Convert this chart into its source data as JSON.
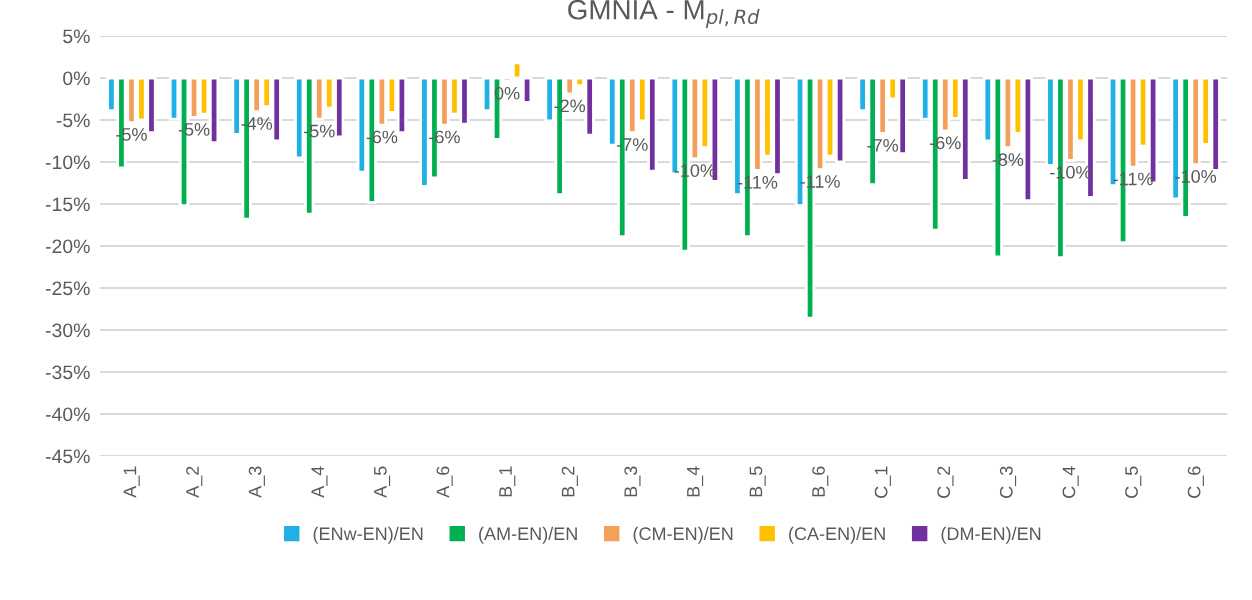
{
  "chart_data": {
    "type": "bar",
    "title": "GMNIA - M$_{pl,Rd}$",
    "categories": [
      "A_1",
      "A_2",
      "A_3",
      "A_4",
      "A_5",
      "A_6",
      "B_1",
      "B_2",
      "B_3",
      "B_4",
      "B_5",
      "B_6",
      "C_1",
      "C_2",
      "C_3",
      "C_4",
      "C_5",
      "C_6"
    ],
    "series": [
      {
        "name": "(ENw-EN)/EN",
        "color": "#1fb0e6",
        "values": [
          -3.9,
          -4.9,
          -6.7,
          -9.5,
          -11.2,
          -12.9,
          -3.9,
          -5.1,
          -8.0,
          -11.4,
          -13.9,
          -15.2,
          -3.9,
          -4.9,
          -7.5,
          -10.4,
          -12.8,
          -14.4
        ]
      },
      {
        "name": "(AM-EN)/EN",
        "color": "#00b050",
        "values": [
          -10.7,
          -15.2,
          -16.8,
          -16.2,
          -14.8,
          -11.9,
          -7.3,
          -13.9,
          -18.9,
          -20.6,
          -18.9,
          -28.6,
          -12.7,
          -18.1,
          -21.3,
          -21.4,
          -19.6,
          -16.6
        ]
      },
      {
        "name": "(CM-EN)/EN",
        "color": "#f4a05a",
        "values": [
          -5.3,
          -4.7,
          -4.0,
          -4.9,
          -5.6,
          -5.6,
          -0.4,
          -1.9,
          -6.5,
          -9.6,
          -11.0,
          -10.9,
          -6.6,
          -6.3,
          -8.3,
          -9.8,
          -10.6,
          -10.3
        ],
        "value_labels": [
          "-5%",
          "-5%",
          "-4%",
          "-5%",
          "-6%",
          "-6%",
          "0%",
          "-2%",
          "-7%",
          "-10%",
          "-11%",
          "-11%",
          "-7%",
          "-6%",
          "-8%",
          "-10%",
          "-11%",
          "-10%"
        ]
      },
      {
        "name": "(CA-EN)/EN",
        "color": "#ffc000",
        "values": [
          -5.0,
          -4.3,
          -3.4,
          -3.6,
          -4.1,
          -4.3,
          1.8,
          -0.9,
          -5.1,
          -8.3,
          -9.3,
          -9.3,
          -2.5,
          -4.8,
          -6.6,
          -7.5,
          -8.1,
          -7.9
        ]
      },
      {
        "name": "(DM-EN)/EN",
        "color": "#7030a0",
        "values": [
          -6.5,
          -7.7,
          -7.5,
          -7.0,
          -6.5,
          -5.5,
          -2.9,
          -6.8,
          -11.1,
          -12.3,
          -11.5,
          -10.0,
          -9.0,
          -12.2,
          -14.6,
          -14.2,
          -12.5,
          -11.0
        ]
      }
    ],
    "ylim": [
      -45,
      5
    ],
    "yticks": [
      {
        "value": 5,
        "label": "5%"
      },
      {
        "value": 0,
        "label": "0%"
      },
      {
        "value": -5,
        "label": "-5%"
      },
      {
        "value": -10,
        "label": "-10%"
      },
      {
        "value": -15,
        "label": "-15%"
      },
      {
        "value": -20,
        "label": "-20%"
      },
      {
        "value": -25,
        "label": "-25%"
      },
      {
        "value": -30,
        "label": "-30%"
      },
      {
        "value": -35,
        "label": "-35%"
      },
      {
        "value": -40,
        "label": "-40%"
      },
      {
        "value": -45,
        "label": "-45%"
      }
    ],
    "grid": "y",
    "legend": "bottom"
  }
}
